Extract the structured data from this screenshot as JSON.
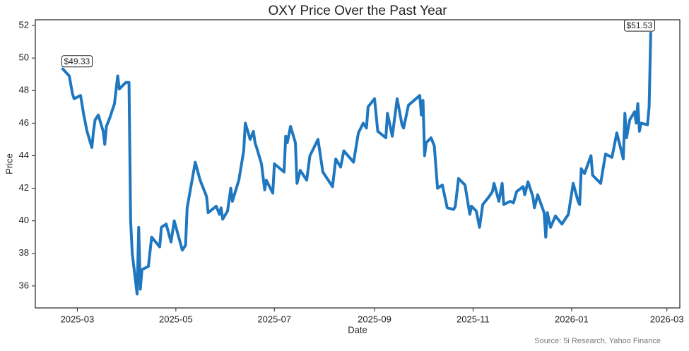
{
  "chart_data": {
    "type": "line",
    "title": "OXY Price Over the Past Year",
    "xlabel": "Date",
    "ylabel": "Price",
    "source": "Source: 5i Research, Yahoo Finance",
    "x": [
      "2025-02-20",
      "2025-02-24",
      "2025-02-26",
      "2025-02-27",
      "2025-03-03",
      "2025-03-05",
      "2025-03-07",
      "2025-03-10",
      "2025-03-11",
      "2025-03-12",
      "2025-03-14",
      "2025-03-17",
      "2025-03-18",
      "2025-03-19",
      "2025-03-21",
      "2025-03-24",
      "2025-03-26",
      "2025-03-27",
      "2025-03-31",
      "2025-04-02",
      "2025-04-03",
      "2025-04-04",
      "2025-04-07",
      "2025-04-08",
      "2025-04-09",
      "2025-04-10",
      "2025-04-14",
      "2025-04-16",
      "2025-04-21",
      "2025-04-22",
      "2025-04-25",
      "2025-04-28",
      "2025-04-30",
      "2025-05-05",
      "2025-05-07",
      "2025-05-08",
      "2025-05-13",
      "2025-05-16",
      "2025-05-20",
      "2025-05-21",
      "2025-05-26",
      "2025-05-28",
      "2025-05-29",
      "2025-05-30",
      "2025-06-02",
      "2025-06-04",
      "2025-06-05",
      "2025-06-09",
      "2025-06-12",
      "2025-06-13",
      "2025-06-16",
      "2025-06-18",
      "2025-06-19",
      "2025-06-20",
      "2025-06-23",
      "2025-06-25",
      "2025-06-26",
      "2025-06-30",
      "2025-07-01",
      "2025-07-07",
      "2025-07-08",
      "2025-07-09",
      "2025-07-11",
      "2025-07-14",
      "2025-07-15",
      "2025-07-17",
      "2025-07-21",
      "2025-07-23",
      "2025-07-28",
      "2025-07-31",
      "2025-08-06",
      "2025-08-08",
      "2025-08-11",
      "2025-08-13",
      "2025-08-19",
      "2025-08-22",
      "2025-08-25",
      "2025-08-27",
      "2025-08-28",
      "2025-09-01",
      "2025-09-03",
      "2025-09-08",
      "2025-09-09",
      "2025-09-12",
      "2025-09-15",
      "2025-09-18",
      "2025-09-19",
      "2025-09-22",
      "2025-09-29",
      "2025-09-30",
      "2025-10-01",
      "2025-10-02",
      "2025-10-03",
      "2025-10-06",
      "2025-10-08",
      "2025-10-10",
      "2025-10-13",
      "2025-10-16",
      "2025-10-20",
      "2025-10-21",
      "2025-10-23",
      "2025-10-27",
      "2025-10-30",
      "2025-10-31",
      "2025-11-03",
      "2025-11-05",
      "2025-11-07",
      "2025-11-11",
      "2025-11-13",
      "2025-11-14",
      "2025-11-17",
      "2025-11-19",
      "2025-11-20",
      "2025-11-24",
      "2025-11-26",
      "2025-11-28",
      "2025-12-02",
      "2025-12-03",
      "2025-12-05",
      "2025-12-08",
      "2025-12-09",
      "2025-12-11",
      "2025-12-15",
      "2025-12-16",
      "2025-12-17",
      "2025-12-19",
      "2025-12-22",
      "2025-12-26",
      "2025-12-30",
      "2026-01-02",
      "2026-01-05",
      "2026-01-06",
      "2026-01-07",
      "2026-01-09",
      "2026-01-13",
      "2026-01-14",
      "2026-01-19",
      "2026-01-21",
      "2026-01-22",
      "2026-01-26",
      "2026-01-29",
      "2026-01-30",
      "2026-02-02",
      "2026-02-03",
      "2026-02-04",
      "2026-02-06",
      "2026-02-09",
      "2026-02-10",
      "2026-02-11",
      "2026-02-12",
      "2026-02-13",
      "2026-02-17",
      "2026-02-18",
      "2026-02-19"
    ],
    "series": [
      {
        "name": "OXY",
        "color": "#1f77c0",
        "values": [
          49.33,
          48.9,
          47.8,
          47.5,
          47.7,
          46.5,
          45.5,
          44.5,
          45.5,
          46.2,
          46.5,
          45.5,
          44.7,
          45.8,
          46.3,
          47.2,
          48.9,
          48.1,
          48.5,
          48.5,
          40.0,
          38.0,
          35.5,
          39.6,
          35.8,
          37.0,
          37.2,
          39.0,
          38.4,
          39.6,
          39.8,
          38.7,
          40.0,
          38.2,
          38.5,
          40.8,
          43.6,
          42.5,
          41.5,
          40.5,
          40.9,
          40.4,
          40.8,
          40.1,
          40.6,
          42.0,
          41.2,
          42.5,
          44.3,
          46.0,
          45.0,
          45.5,
          44.8,
          44.5,
          43.5,
          41.9,
          42.5,
          41.7,
          43.5,
          43.0,
          45.2,
          44.8,
          45.8,
          44.8,
          42.3,
          43.1,
          42.5,
          44.0,
          45.0,
          43.0,
          42.1,
          43.8,
          43.3,
          44.3,
          43.6,
          45.4,
          46.0,
          45.7,
          47.0,
          47.5,
          45.5,
          45.1,
          46.6,
          45.2,
          47.5,
          45.9,
          45.7,
          47.1,
          47.7,
          46.5,
          47.4,
          44.0,
          44.8,
          45.1,
          44.6,
          42.0,
          42.2,
          40.8,
          40.7,
          40.9,
          42.6,
          42.2,
          40.4,
          40.9,
          40.6,
          39.6,
          41.0,
          41.5,
          41.8,
          42.3,
          41.2,
          42.3,
          41.0,
          41.2,
          41.1,
          41.8,
          42.1,
          41.6,
          42.4,
          41.5,
          40.8,
          41.6,
          40.5,
          39.0,
          40.5,
          39.6,
          40.3,
          39.8,
          40.4,
          42.3,
          41.2,
          41.0,
          43.2,
          42.9,
          44.0,
          42.8,
          42.3,
          43.5,
          44.1,
          43.9,
          45.4,
          45.0,
          43.8,
          46.6,
          45.1,
          46.2,
          46.7,
          46.0,
          47.2,
          45.5,
          46.0,
          45.9,
          47.0,
          51.53
        ],
        "value_labels": [
          "$49.33",
          null,
          null,
          null,
          null,
          null,
          null,
          null,
          null,
          null,
          null,
          null,
          null,
          null,
          null,
          null,
          null,
          null,
          null,
          null,
          null,
          null,
          null,
          null,
          null,
          null,
          null,
          null,
          null,
          null,
          null,
          null,
          null,
          null,
          null,
          null,
          null,
          null,
          null,
          null,
          null,
          null,
          null,
          null,
          null,
          null,
          null,
          null,
          null,
          null,
          null,
          null,
          null,
          null,
          null,
          null,
          null,
          null,
          null,
          null,
          null,
          null,
          null,
          null,
          null,
          null,
          null,
          null,
          null,
          null,
          null,
          null,
          null,
          null,
          null,
          null,
          null,
          null,
          null,
          null,
          null,
          null,
          null,
          null,
          null,
          null,
          null,
          null,
          null,
          null,
          null,
          null,
          null,
          null,
          null,
          null,
          null,
          null,
          null,
          null,
          null,
          null,
          null,
          null,
          null,
          null,
          null,
          null,
          null,
          null,
          null,
          null,
          null,
          null,
          null,
          null,
          null,
          null,
          null,
          null,
          null,
          null,
          null,
          null,
          null,
          null,
          null,
          null,
          null,
          null,
          null,
          null,
          null,
          null,
          null,
          null,
          null,
          null,
          null,
          null,
          null,
          null,
          null,
          null,
          null,
          null,
          null,
          null,
          null,
          null,
          null,
          null,
          null,
          "$51.53"
        ]
      }
    ],
    "xlim": [
      "2025-02-03",
      "2026-03-09"
    ],
    "xticks": [
      {
        "value": "2025-03-01",
        "label": "2025-03"
      },
      {
        "value": "2025-05-01",
        "label": "2025-05"
      },
      {
        "value": "2025-07-01",
        "label": "2025-07"
      },
      {
        "value": "2025-09-01",
        "label": "2025-09"
      },
      {
        "value": "2025-11-01",
        "label": "2025-11"
      },
      {
        "value": "2026-01-01",
        "label": "2026-01"
      },
      {
        "value": "2026-03-01",
        "label": "2026-03"
      }
    ],
    "ylim": [
      34.65,
      52.35
    ],
    "yticks": [
      36,
      38,
      40,
      42,
      44,
      46,
      48,
      50,
      52
    ],
    "grid": false
  }
}
